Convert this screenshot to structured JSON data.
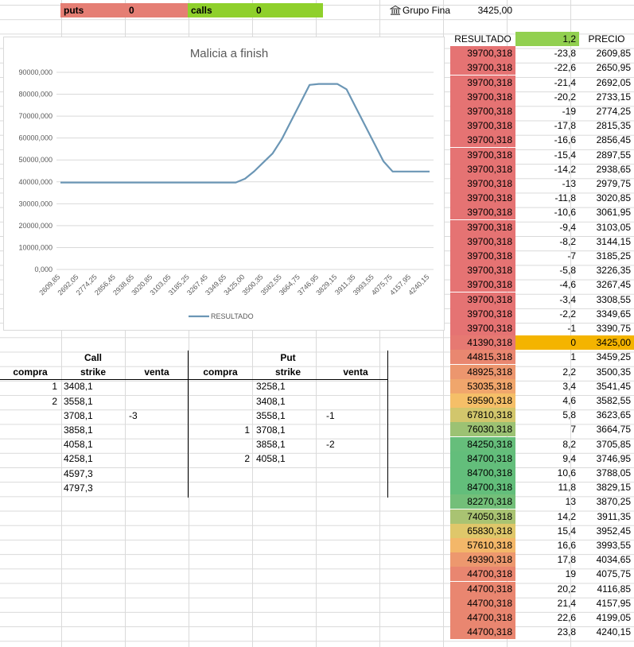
{
  "top": {
    "puts_label": "puts",
    "puts_value": "0",
    "calls_label": "calls",
    "calls_value": "0",
    "bank_name": "Grupo Fina",
    "price": "3425,00"
  },
  "table_right": {
    "headers": [
      "RESULTADO",
      "1,2",
      "PRECIO"
    ],
    "rows": [
      [
        "39700,318",
        "-23,8",
        "2609,85"
      ],
      [
        "39700,318",
        "-22,6",
        "2650,95"
      ],
      [
        "39700,318",
        "-21,4",
        "2692,05"
      ],
      [
        "39700,318",
        "-20,2",
        "2733,15"
      ],
      [
        "39700,318",
        "-19",
        "2774,25"
      ],
      [
        "39700,318",
        "-17,8",
        "2815,35"
      ],
      [
        "39700,318",
        "-16,6",
        "2856,45"
      ],
      [
        "39700,318",
        "-15,4",
        "2897,55"
      ],
      [
        "39700,318",
        "-14,2",
        "2938,65"
      ],
      [
        "39700,318",
        "-13",
        "2979,75"
      ],
      [
        "39700,318",
        "-11,8",
        "3020,85"
      ],
      [
        "39700,318",
        "-10,6",
        "3061,95"
      ],
      [
        "39700,318",
        "-9,4",
        "3103,05"
      ],
      [
        "39700,318",
        "-8,2",
        "3144,15"
      ],
      [
        "39700,318",
        "-7",
        "3185,25"
      ],
      [
        "39700,318",
        "-5,8",
        "3226,35"
      ],
      [
        "39700,318",
        "-4,6",
        "3267,45"
      ],
      [
        "39700,318",
        "-3,4",
        "3308,55"
      ],
      [
        "39700,318",
        "-2,2",
        "3349,65"
      ],
      [
        "39700,318",
        "-1",
        "3390,75"
      ],
      [
        "41390,318",
        "0",
        "3425,00"
      ],
      [
        "44815,318",
        "1",
        "3459,25"
      ],
      [
        "48925,318",
        "2,2",
        "3500,35"
      ],
      [
        "53035,318",
        "3,4",
        "3541,45"
      ],
      [
        "59590,318",
        "4,6",
        "3582,55"
      ],
      [
        "67810,318",
        "5,8",
        "3623,65"
      ],
      [
        "76030,318",
        "7",
        "3664,75"
      ],
      [
        "84250,318",
        "8,2",
        "3705,85"
      ],
      [
        "84700,318",
        "9,4",
        "3746,95"
      ],
      [
        "84700,318",
        "10,6",
        "3788,05"
      ],
      [
        "84700,318",
        "11,8",
        "3829,15"
      ],
      [
        "82270,318",
        "13",
        "3870,25"
      ],
      [
        "74050,318",
        "14,2",
        "3911,35"
      ],
      [
        "65830,318",
        "15,4",
        "3952,45"
      ],
      [
        "57610,318",
        "16,6",
        "3993,55"
      ],
      [
        "49390,318",
        "17,8",
        "4034,65"
      ],
      [
        "44700,318",
        "19",
        "4075,75"
      ],
      [
        "44700,318",
        "20,2",
        "4116,85"
      ],
      [
        "44700,318",
        "21,4",
        "4157,95"
      ],
      [
        "44700,318",
        "22,6",
        "4199,05"
      ],
      [
        "44700,318",
        "23,8",
        "4240,15"
      ]
    ],
    "colors": {
      "min": "#e57373",
      "mid": "#f7c967",
      "max": "#63be7b",
      "highlight_price": "#f4b400",
      "header_green": "#92d050"
    }
  },
  "options": {
    "call_title": "Call",
    "put_title": "Put",
    "call_headers": [
      "compra",
      "strike",
      "venta"
    ],
    "put_headers": [
      "compra",
      "strike",
      "venta"
    ],
    "call_rows": [
      [
        "1",
        "3408,1",
        ""
      ],
      [
        "2",
        "3558,1",
        ""
      ],
      [
        "",
        "3708,1",
        "-3"
      ],
      [
        "",
        "3858,1",
        ""
      ],
      [
        "",
        "4058,1",
        ""
      ],
      [
        "",
        "4258,1",
        ""
      ],
      [
        "",
        "4597,3",
        ""
      ],
      [
        "",
        "4797,3",
        ""
      ]
    ],
    "put_rows": [
      [
        "",
        "3258,1",
        ""
      ],
      [
        "",
        "3408,1",
        ""
      ],
      [
        "",
        "3558,1",
        "-1"
      ],
      [
        "1",
        "3708,1",
        ""
      ],
      [
        "",
        "3858,1",
        "-2"
      ],
      [
        "2",
        "4058,1",
        ""
      ]
    ]
  },
  "chart_data": {
    "type": "line",
    "title": "Malicia a finish",
    "legend": "RESULTADO",
    "legend_position": "bottom",
    "ylim": [
      0,
      90000
    ],
    "y_ticks": [
      "0,000",
      "10000,000",
      "20000,000",
      "30000,000",
      "40000,000",
      "50000,000",
      "60000,000",
      "70000,000",
      "80000,000",
      "90000,000"
    ],
    "x_tick_labels": [
      "2609,85",
      "2692,05",
      "2774,25",
      "2856,45",
      "2938,65",
      "3020,85",
      "3103,05",
      "3185,25",
      "3267,45",
      "3349,65",
      "3425,00",
      "3500,35",
      "3582,55",
      "3664,75",
      "3746,95",
      "3829,15",
      "3911,35",
      "3993,55",
      "4075,75",
      "4157,95",
      "4240,15"
    ],
    "x": [
      "2609,85",
      "2650,95",
      "2692,05",
      "2733,15",
      "2774,25",
      "2815,35",
      "2856,45",
      "2897,55",
      "2938,65",
      "2979,75",
      "3020,85",
      "3061,95",
      "3103,05",
      "3144,15",
      "3185,25",
      "3226,35",
      "3267,45",
      "3308,55",
      "3349,65",
      "3390,75",
      "3425,00",
      "3459,25",
      "3500,35",
      "3541,45",
      "3582,55",
      "3623,65",
      "3664,75",
      "3705,85",
      "3746,95",
      "3788,05",
      "3829,15",
      "3870,25",
      "3911,35",
      "3952,45",
      "3993,55",
      "4034,65",
      "4075,75",
      "4116,85",
      "4157,95",
      "4199,05",
      "4240,15"
    ],
    "series": [
      {
        "name": "RESULTADO",
        "color": "#6b96b5",
        "values": [
          39700.318,
          39700.318,
          39700.318,
          39700.318,
          39700.318,
          39700.318,
          39700.318,
          39700.318,
          39700.318,
          39700.318,
          39700.318,
          39700.318,
          39700.318,
          39700.318,
          39700.318,
          39700.318,
          39700.318,
          39700.318,
          39700.318,
          39700.318,
          41390.318,
          44815.318,
          48925.318,
          53035.318,
          59590.318,
          67810.318,
          76030.318,
          84250.318,
          84700.318,
          84700.318,
          84700.318,
          82270.318,
          74050.318,
          65830.318,
          57610.318,
          49390.318,
          44700.318,
          44700.318,
          44700.318,
          44700.318,
          44700.318
        ]
      }
    ],
    "grid": true
  }
}
